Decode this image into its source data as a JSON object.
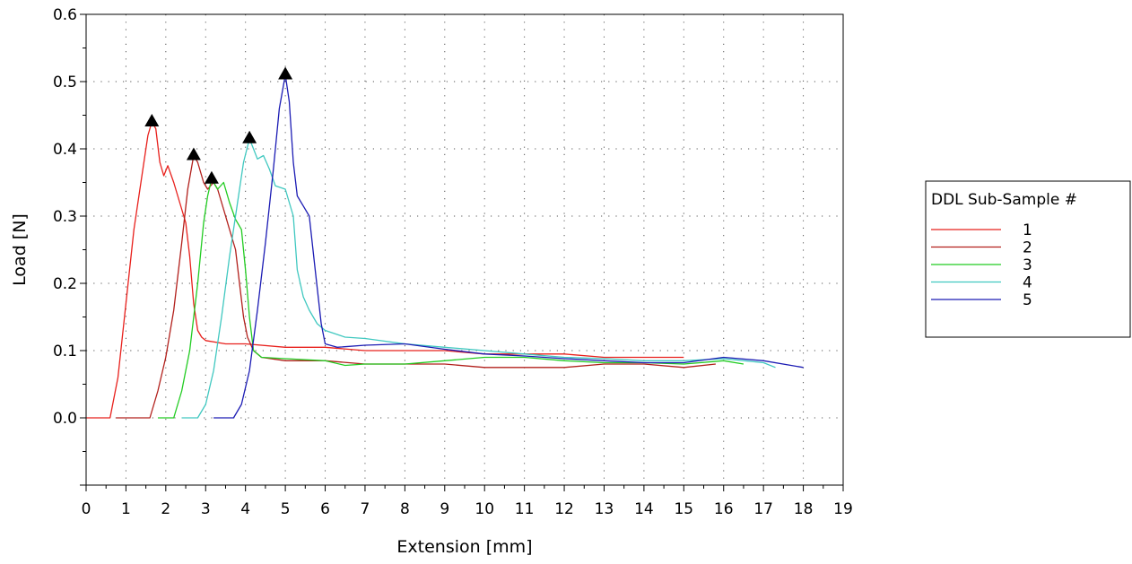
{
  "chart_data": {
    "type": "line",
    "title": "",
    "xlabel": "Extension [mm]",
    "ylabel": "Load [N]",
    "xlim": [
      0,
      19
    ],
    "ylim": [
      -0.1,
      0.6
    ],
    "x_ticks": [
      "0",
      "1",
      "2",
      "3",
      "4",
      "5",
      "6",
      "7",
      "8",
      "9",
      "10",
      "11",
      "12",
      "13",
      "14",
      "15",
      "16",
      "17",
      "18",
      "19"
    ],
    "y_ticks": [
      "0.0",
      "0.1",
      "0.2",
      "0.3",
      "0.4",
      "0.5",
      "0.6"
    ],
    "grid": true,
    "grid_style": "dotted",
    "legend": {
      "title": "DDL Sub-Sample #",
      "placement": "right"
    },
    "series": [
      {
        "name": "1",
        "color": "#e8201c",
        "peak": [
          1.65,
          0.44
        ],
        "points": [
          [
            0,
            0
          ],
          [
            0.6,
            0
          ],
          [
            0.8,
            0.06
          ],
          [
            1.0,
            0.17
          ],
          [
            1.2,
            0.28
          ],
          [
            1.4,
            0.36
          ],
          [
            1.55,
            0.42
          ],
          [
            1.65,
            0.44
          ],
          [
            1.75,
            0.43
          ],
          [
            1.85,
            0.38
          ],
          [
            1.95,
            0.36
          ],
          [
            2.05,
            0.375
          ],
          [
            2.2,
            0.35
          ],
          [
            2.35,
            0.32
          ],
          [
            2.5,
            0.29
          ],
          [
            2.6,
            0.24
          ],
          [
            2.7,
            0.17
          ],
          [
            2.8,
            0.13
          ],
          [
            2.9,
            0.12
          ],
          [
            3.0,
            0.115
          ],
          [
            3.5,
            0.11
          ],
          [
            4.0,
            0.11
          ],
          [
            5.0,
            0.105
          ],
          [
            6.0,
            0.105
          ],
          [
            7.0,
            0.1
          ],
          [
            8.0,
            0.1
          ],
          [
            9.0,
            0.1
          ],
          [
            10.0,
            0.095
          ],
          [
            11.0,
            0.095
          ],
          [
            12.0,
            0.095
          ],
          [
            13.0,
            0.09
          ],
          [
            14.0,
            0.09
          ],
          [
            15.0,
            0.09
          ]
        ]
      },
      {
        "name": "2",
        "color": "#b2201c",
        "peak": [
          2.7,
          0.39
        ],
        "points": [
          [
            0.75,
            0
          ],
          [
            1.6,
            0
          ],
          [
            1.8,
            0.04
          ],
          [
            2.0,
            0.09
          ],
          [
            2.2,
            0.16
          ],
          [
            2.4,
            0.26
          ],
          [
            2.55,
            0.34
          ],
          [
            2.7,
            0.39
          ],
          [
            2.8,
            0.38
          ],
          [
            2.95,
            0.35
          ],
          [
            3.05,
            0.34
          ],
          [
            3.2,
            0.35
          ],
          [
            3.3,
            0.34
          ],
          [
            3.45,
            0.31
          ],
          [
            3.6,
            0.28
          ],
          [
            3.75,
            0.25
          ],
          [
            3.85,
            0.2
          ],
          [
            3.95,
            0.15
          ],
          [
            4.05,
            0.12
          ],
          [
            4.2,
            0.1
          ],
          [
            4.4,
            0.09
          ],
          [
            5.0,
            0.085
          ],
          [
            6.0,
            0.085
          ],
          [
            7.0,
            0.08
          ],
          [
            8.0,
            0.08
          ],
          [
            9.0,
            0.08
          ],
          [
            10.0,
            0.075
          ],
          [
            11.0,
            0.075
          ],
          [
            12.0,
            0.075
          ],
          [
            13.0,
            0.08
          ],
          [
            14.0,
            0.08
          ],
          [
            15.0,
            0.075
          ],
          [
            15.8,
            0.08
          ]
        ]
      },
      {
        "name": "3",
        "color": "#22cc22",
        "peak": [
          3.15,
          0.355
        ],
        "points": [
          [
            1.8,
            0
          ],
          [
            2.2,
            0
          ],
          [
            2.4,
            0.04
          ],
          [
            2.6,
            0.1
          ],
          [
            2.8,
            0.2
          ],
          [
            2.95,
            0.29
          ],
          [
            3.05,
            0.33
          ],
          [
            3.15,
            0.355
          ],
          [
            3.3,
            0.34
          ],
          [
            3.45,
            0.35
          ],
          [
            3.6,
            0.32
          ],
          [
            3.75,
            0.295
          ],
          [
            3.9,
            0.28
          ],
          [
            4.0,
            0.22
          ],
          [
            4.1,
            0.15
          ],
          [
            4.2,
            0.1
          ],
          [
            4.4,
            0.09
          ],
          [
            5.0,
            0.088
          ],
          [
            6.0,
            0.085
          ],
          [
            6.5,
            0.078
          ],
          [
            7.0,
            0.08
          ],
          [
            8.0,
            0.08
          ],
          [
            9.0,
            0.085
          ],
          [
            10.0,
            0.09
          ],
          [
            11.0,
            0.09
          ],
          [
            12.0,
            0.085
          ],
          [
            13.0,
            0.082
          ],
          [
            14.0,
            0.082
          ],
          [
            15.0,
            0.08
          ],
          [
            16.0,
            0.085
          ],
          [
            16.5,
            0.08
          ]
        ]
      },
      {
        "name": "4",
        "color": "#40c8c0",
        "peak": [
          4.1,
          0.415
        ],
        "points": [
          [
            2.4,
            0
          ],
          [
            2.8,
            0
          ],
          [
            3.0,
            0.02
          ],
          [
            3.2,
            0.07
          ],
          [
            3.4,
            0.15
          ],
          [
            3.6,
            0.24
          ],
          [
            3.8,
            0.32
          ],
          [
            3.95,
            0.38
          ],
          [
            4.1,
            0.415
          ],
          [
            4.2,
            0.4
          ],
          [
            4.3,
            0.385
          ],
          [
            4.45,
            0.39
          ],
          [
            4.6,
            0.37
          ],
          [
            4.75,
            0.345
          ],
          [
            5.0,
            0.34
          ],
          [
            5.2,
            0.3
          ],
          [
            5.3,
            0.22
          ],
          [
            5.45,
            0.18
          ],
          [
            5.6,
            0.16
          ],
          [
            5.8,
            0.14
          ],
          [
            6.0,
            0.13
          ],
          [
            6.5,
            0.12
          ],
          [
            7.0,
            0.118
          ],
          [
            8.0,
            0.11
          ],
          [
            9.0,
            0.105
          ],
          [
            10.0,
            0.1
          ],
          [
            11.0,
            0.095
          ],
          [
            12.0,
            0.09
          ],
          [
            13.0,
            0.088
          ],
          [
            14.0,
            0.085
          ],
          [
            15.0,
            0.085
          ],
          [
            16.0,
            0.088
          ],
          [
            17.0,
            0.082
          ],
          [
            17.3,
            0.075
          ]
        ]
      },
      {
        "name": "5",
        "color": "#1c1cb4",
        "peak": [
          5.0,
          0.51
        ],
        "points": [
          [
            3.2,
            0
          ],
          [
            3.7,
            0
          ],
          [
            3.9,
            0.02
          ],
          [
            4.1,
            0.07
          ],
          [
            4.3,
            0.16
          ],
          [
            4.5,
            0.26
          ],
          [
            4.7,
            0.37
          ],
          [
            4.85,
            0.46
          ],
          [
            5.0,
            0.51
          ],
          [
            5.1,
            0.47
          ],
          [
            5.2,
            0.38
          ],
          [
            5.3,
            0.33
          ],
          [
            5.45,
            0.315
          ],
          [
            5.6,
            0.3
          ],
          [
            5.75,
            0.22
          ],
          [
            5.9,
            0.14
          ],
          [
            6.0,
            0.11
          ],
          [
            6.3,
            0.105
          ],
          [
            7.0,
            0.108
          ],
          [
            8.0,
            0.11
          ],
          [
            9.0,
            0.102
          ],
          [
            10.0,
            0.095
          ],
          [
            11.0,
            0.092
          ],
          [
            12.0,
            0.088
          ],
          [
            13.0,
            0.085
          ],
          [
            14.0,
            0.082
          ],
          [
            15.0,
            0.082
          ],
          [
            16.0,
            0.09
          ],
          [
            17.0,
            0.085
          ],
          [
            18.0,
            0.075
          ]
        ]
      }
    ]
  }
}
